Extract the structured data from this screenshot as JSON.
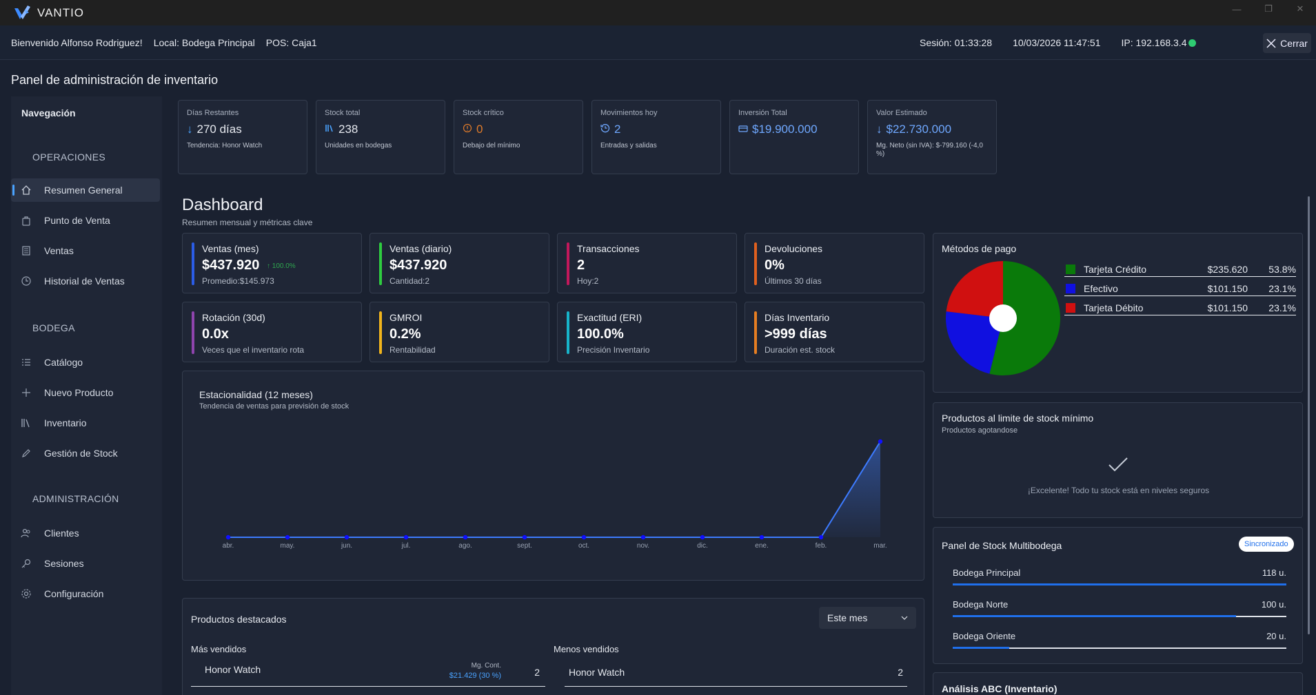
{
  "app": {
    "name": "VANTIO"
  },
  "window_controls": {
    "minimize": "—",
    "restore": "❐",
    "close": "✕"
  },
  "infobar": {
    "welcome": "Bienvenido Alfonso Rodriguez!",
    "local": "Local: Bodega Principal",
    "pos": "POS: Caja1",
    "session": "Sesión: 01:33:28",
    "datetime": "10/03/2026 11:47:51",
    "ip": "IP: 192.168.3.4",
    "close_label": "Cerrar",
    "status_color": "#2ecc71"
  },
  "page_title": "Panel de administración de inventario",
  "sidebar": {
    "title": "Navegación",
    "sections": [
      {
        "label": "OPERACIONES",
        "items": [
          {
            "label": "Resumen General",
            "icon": "home-icon",
            "active": true
          },
          {
            "label": "Punto de Venta",
            "icon": "bag-icon"
          },
          {
            "label": "Ventas",
            "icon": "receipt-icon"
          },
          {
            "label": "Historial de Ventas",
            "icon": "clock-icon"
          }
        ]
      },
      {
        "label": "BODEGA",
        "items": [
          {
            "label": "Catálogo",
            "icon": "list-icon"
          },
          {
            "label": "Nuevo Producto",
            "icon": "plus-icon"
          },
          {
            "label": "Inventario",
            "icon": "books-icon"
          },
          {
            "label": "Gestión de Stock",
            "icon": "pencil-icon"
          }
        ]
      },
      {
        "label": "ADMINISTRACIÓN",
        "items": [
          {
            "label": "Clientes",
            "icon": "people-icon"
          },
          {
            "label": "Sesiones",
            "icon": "key-icon"
          },
          {
            "label": "Configuración",
            "icon": "gear-icon"
          }
        ]
      }
    ]
  },
  "kpis": [
    {
      "label": "Días Restantes",
      "icon": "arrow-down-icon",
      "value": "270 días",
      "sub": "Tendencia: Honor Watch",
      "color": "#ffffff",
      "icon_color": "#4aa3ff"
    },
    {
      "label": "Stock total",
      "icon": "books-icon",
      "value": "238",
      "sub": "Unidades en bodegas",
      "color": "#ffffff",
      "icon_color": "#4aa3ff"
    },
    {
      "label": "Stock crítico",
      "icon": "warning-circle-icon",
      "value": "0",
      "sub": "Debajo del mínimo",
      "color": "#e07b2a",
      "icon_color": "#e07b2a"
    },
    {
      "label": "Movimientos hoy",
      "icon": "history-icon",
      "value": "2",
      "sub": "Entradas y salidas",
      "color": "#6fa8ff",
      "icon_color": "#6fa8ff"
    },
    {
      "label": "Inversión Total",
      "icon": "card-icon",
      "value": "$19.900.000",
      "sub": "",
      "color": "#6fa8ff",
      "icon_color": "#6fa8ff"
    },
    {
      "label": "Valor Estimado",
      "icon": "arrow-down-icon",
      "value": "$22.730.000",
      "sub": "Mg. Neto (sin IVA): $-799.160 (-4,0 %)",
      "color": "#6fa8ff",
      "icon_color": "#6fa8ff"
    }
  ],
  "dashboard": {
    "title": "Dashboard",
    "subtitle": "Resumen mensual y métricas clave"
  },
  "metrics": [
    {
      "label": "Ventas (mes)",
      "value": "$437.920",
      "trend": "↑ 100.0%",
      "sub": "Promedio:$145.973",
      "color": "#2b5ce6"
    },
    {
      "label": "Ventas (diario)",
      "value": "$437.920",
      "sub": "Cantidad:2",
      "color": "#2ecc40"
    },
    {
      "label": "Transacciones",
      "value": "2",
      "sub": "Hoy:2",
      "color": "#c2185b"
    },
    {
      "label": "Devoluciones",
      "value": "0%",
      "sub": "Últimos 30 días",
      "color": "#e0601f"
    },
    {
      "label": "Rotación (30d)",
      "value": "0.0x",
      "sub": "Veces que el inventario rota",
      "color": "#8e44ad"
    },
    {
      "label": "GMROI",
      "value": "0.2%",
      "sub": "Rentabilidad",
      "color": "#f1b41c"
    },
    {
      "label": "Exactitud (ERI)",
      "value": "100.0%",
      "sub": "Precisión Inventario",
      "color": "#17b3c9"
    },
    {
      "label": "Días Inventario",
      "value": ">999 días",
      "sub": "Duración est. stock",
      "color": "#e67e22"
    }
  ],
  "seasonality": {
    "title": "Estacionalidad (12 meses)",
    "subtitle": "Tendencia de ventas para previsión de stock"
  },
  "chart_data": {
    "type": "area",
    "categories": [
      "abr.",
      "may.",
      "jun.",
      "jul.",
      "ago.",
      "sept.",
      "oct.",
      "nov.",
      "dic.",
      "ene.",
      "feb.",
      "mar."
    ],
    "values": [
      0,
      0,
      0,
      0,
      0,
      0,
      0,
      0,
      0,
      0,
      0,
      437920
    ],
    "ylim": [
      0,
      437920
    ],
    "grid": false,
    "line_color": "#3d7bff",
    "point_color": "#1010ff"
  },
  "payment_methods": {
    "title": "Métodos de pago",
    "items": [
      {
        "name": "Tarjeta Crédito",
        "amount": "$235.620",
        "pct": "53.8%",
        "value": 53.8,
        "color": "#0a7a0a"
      },
      {
        "name": "Efectivo",
        "amount": "$101.150",
        "pct": "23.1%",
        "value": 23.1,
        "color": "#1010e0"
      },
      {
        "name": "Tarjeta Débito",
        "amount": "$101.150",
        "pct": "23.1%",
        "value": 23.1,
        "color": "#d01010"
      }
    ]
  },
  "min_stock": {
    "title": "Productos al limite de stock mínimo",
    "subtitle": "Productos agotandose",
    "icon": "check-icon",
    "message": "¡Excelente! Todo tu stock está en niveles seguros"
  },
  "multibodega": {
    "title": "Panel de Stock Multibodega",
    "badge": "Sincronizado",
    "items": [
      {
        "name": "Bodega Principal",
        "qty": "118 u.",
        "fraction": 1.0
      },
      {
        "name": "Bodega Norte",
        "qty": "100 u.",
        "fraction": 0.85
      },
      {
        "name": "Bodega Oriente",
        "qty": "20 u.",
        "fraction": 0.17
      }
    ]
  },
  "abc": {
    "title": "Análisis ABC (Inventario)"
  },
  "featured": {
    "title": "Productos destacados",
    "period": "Este mes",
    "best_title": "Más vendidos",
    "worst_title": "Menos vendidos",
    "best": [
      {
        "name": "Honor Watch",
        "margin_label": "Mg. Cont.",
        "margin": "$21.429 (30 %)",
        "qty": "2"
      }
    ],
    "worst": [
      {
        "name": "Honor Watch",
        "qty": "2"
      }
    ]
  }
}
